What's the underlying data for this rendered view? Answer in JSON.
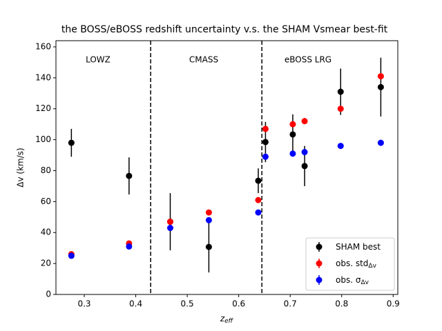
{
  "chart_data": {
    "type": "errorbar",
    "title": "the BOSS/eBOSS redshift uncertainty v.s. the SHAM Vsmear best-fit",
    "x_label": "z",
    "x_label_sub": "eff",
    "y_label": "Δv (km/s)",
    "xlim": [
      0.245,
      0.909
    ],
    "ylim": [
      0,
      164
    ],
    "xticks": [
      0.3,
      0.4,
      0.5,
      0.6,
      0.7,
      0.8,
      0.9
    ],
    "yticks": [
      0,
      20,
      40,
      60,
      80,
      100,
      120,
      140,
      160
    ],
    "vlines": [
      0.429,
      0.645
    ],
    "annotations": [
      "LOWZ",
      "CMASS",
      "eBOSS LRG"
    ],
    "legend": "lower right",
    "series": [
      {
        "name": "SHAM best",
        "name_sub": "",
        "color": "#000000",
        "x": [
          0.275,
          0.387,
          0.467,
          0.542,
          0.638,
          0.652,
          0.705,
          0.728,
          0.798,
          0.876
        ],
        "values": [
          98,
          76.6,
          47,
          30.7,
          73.5,
          98.5,
          103.4,
          83,
          131,
          134
        ],
        "errors": [
          9,
          12,
          18.5,
          16.5,
          8,
          13,
          13,
          13,
          15,
          19
        ]
      },
      {
        "name": "obs. std",
        "name_sub": "Δv",
        "color": "#ff0000",
        "x": [
          0.275,
          0.387,
          0.467,
          0.542,
          0.638,
          0.652,
          0.705,
          0.728,
          0.798,
          0.876
        ],
        "values": [
          26,
          33,
          47,
          53,
          61,
          107,
          110,
          112,
          120,
          141
        ],
        "errors": [
          1,
          1,
          1,
          1,
          1,
          1.5,
          1.5,
          2,
          1.5,
          2
        ]
      },
      {
        "name": "obs. σ",
        "name_sub": "Δv",
        "color": "#0000ff",
        "x": [
          0.275,
          0.387,
          0.467,
          0.542,
          0.638,
          0.652,
          0.705,
          0.728,
          0.798,
          0.876
        ],
        "values": [
          25,
          31,
          43,
          48,
          53,
          89,
          91,
          92,
          96,
          98
        ],
        "errors": [
          1,
          1,
          1,
          1,
          1,
          1,
          1,
          1,
          1,
          2
        ]
      }
    ]
  }
}
